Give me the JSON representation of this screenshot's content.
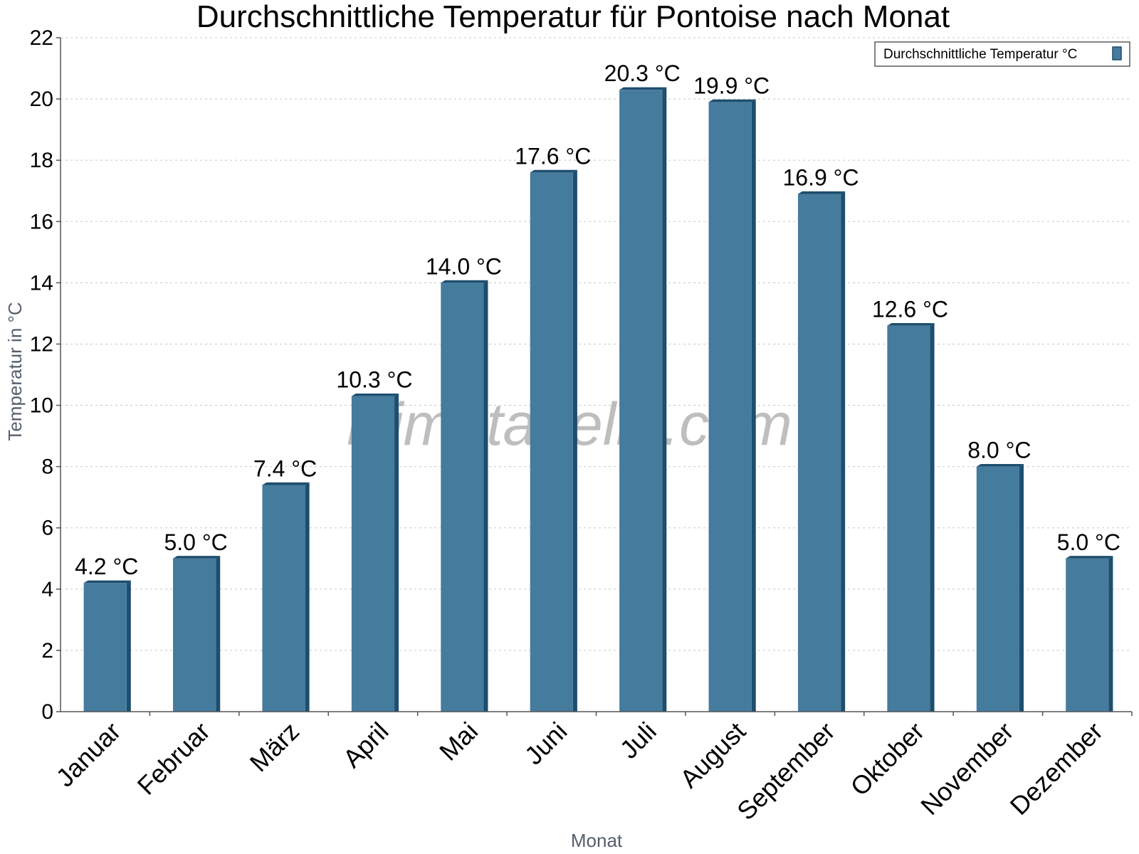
{
  "chart_data": {
    "type": "bar",
    "title": "Durchschnittliche Temperatur für Pontoise nach Monat",
    "xlabel": "Monat",
    "ylabel": "Temperatur in °C",
    "categories": [
      "Januar",
      "Februar",
      "März",
      "April",
      "Mai",
      "Juni",
      "Juli",
      "August",
      "September",
      "Oktober",
      "November",
      "Dezember"
    ],
    "series": [
      {
        "name": "Durchschnittliche Temperatur °C",
        "values": [
          4.2,
          5.0,
          7.4,
          10.3,
          14.0,
          17.6,
          20.3,
          19.9,
          16.9,
          12.6,
          8.0,
          5.0
        ],
        "labels": [
          "4.2 °C",
          "5.0 °C",
          "7.4 °C",
          "10.3 °C",
          "14.0 °C",
          "17.6 °C",
          "20.3 °C",
          "19.9 °C",
          "16.9 °C",
          "12.6 °C",
          "8.0 °C",
          "5.0 °C"
        ],
        "color": "#457b9d",
        "side_color": "#1d4e6e"
      }
    ],
    "ylim": [
      0,
      22
    ],
    "yticks": [
      0,
      2,
      4,
      6,
      8,
      10,
      12,
      14,
      16,
      18,
      20,
      22
    ],
    "grid": true,
    "legend_position": "top-right"
  },
  "watermark": "klimatabelle.com"
}
